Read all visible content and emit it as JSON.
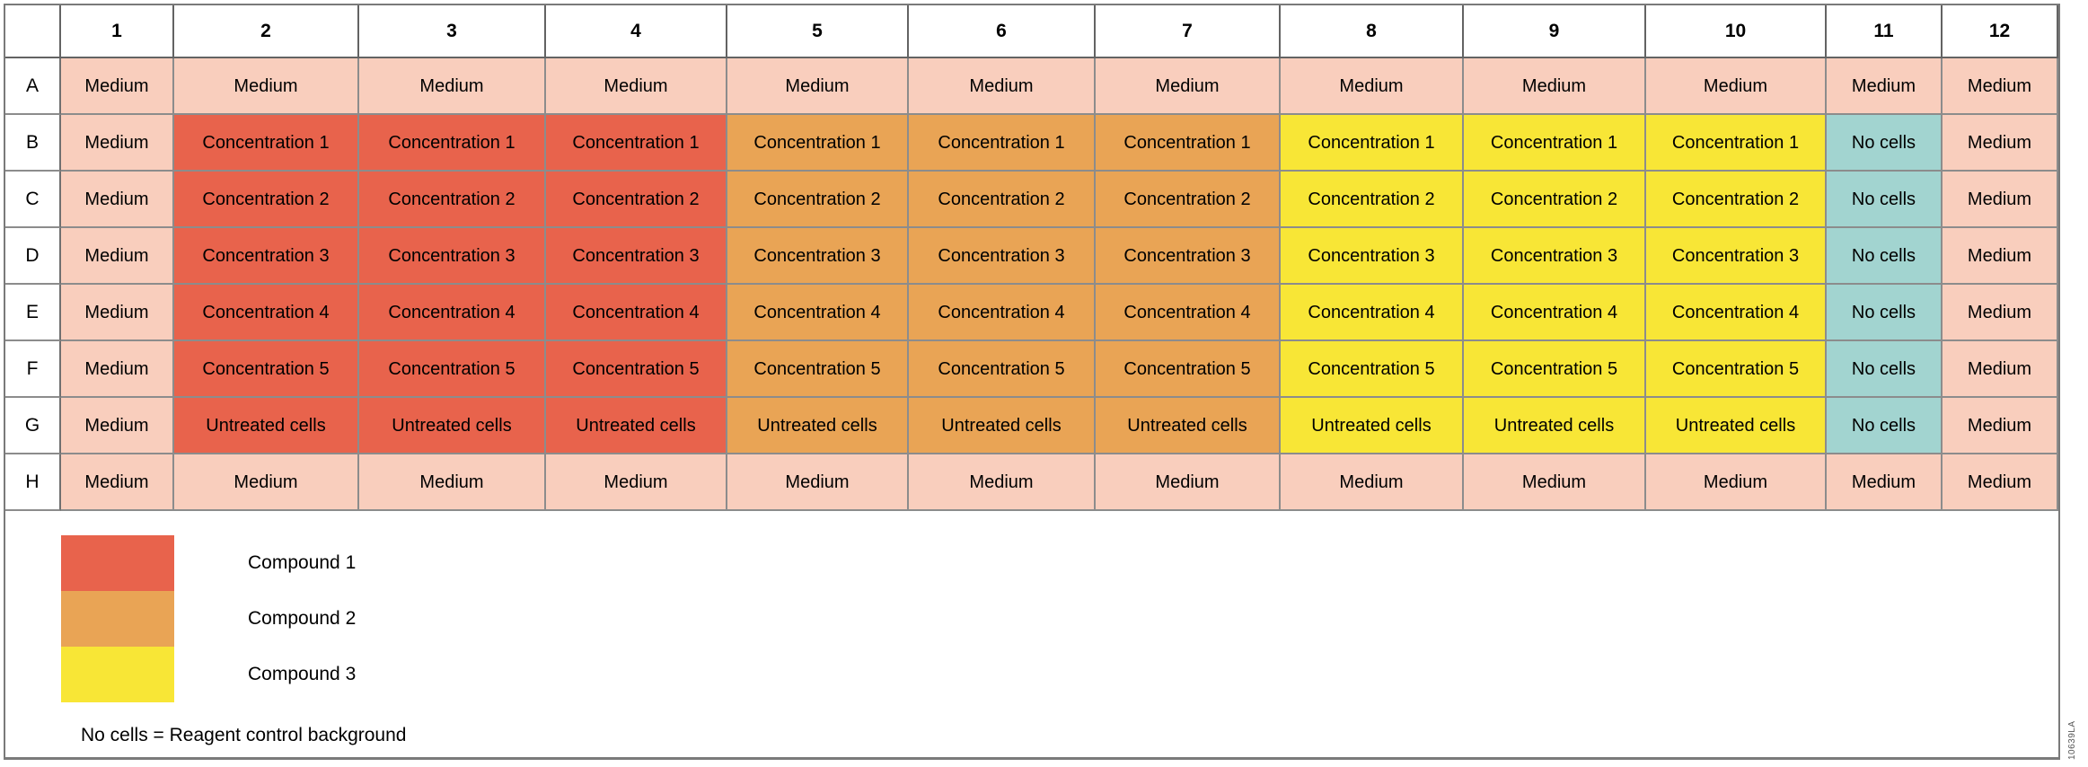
{
  "figure": {
    "note": "No cells = Reagent control background",
    "figure_id": "10639LA"
  },
  "colors": {
    "medium": "#F9CEBD",
    "compound1": "#E8634C",
    "compound2": "#E9A455",
    "compound3": "#F8E636",
    "nocells": "#A2D4D0",
    "grid_line": "#8C8C8C",
    "text": "#000000"
  },
  "plate": {
    "column_headers": [
      "1",
      "2",
      "3",
      "4",
      "5",
      "6",
      "7",
      "8",
      "9",
      "10",
      "11",
      "12"
    ],
    "rows": [
      {
        "label": "A",
        "cells": [
          {
            "text": "Medium",
            "color": "medium"
          },
          {
            "text": "Medium",
            "color": "medium"
          },
          {
            "text": "Medium",
            "color": "medium"
          },
          {
            "text": "Medium",
            "color": "medium"
          },
          {
            "text": "Medium",
            "color": "medium"
          },
          {
            "text": "Medium",
            "color": "medium"
          },
          {
            "text": "Medium",
            "color": "medium"
          },
          {
            "text": "Medium",
            "color": "medium"
          },
          {
            "text": "Medium",
            "color": "medium"
          },
          {
            "text": "Medium",
            "color": "medium"
          },
          {
            "text": "Medium",
            "color": "medium"
          },
          {
            "text": "Medium",
            "color": "medium"
          }
        ]
      },
      {
        "label": "B",
        "cells": [
          {
            "text": "Medium",
            "color": "medium"
          },
          {
            "text": "Concentration 1",
            "color": "compound1"
          },
          {
            "text": "Concentration 1",
            "color": "compound1"
          },
          {
            "text": "Concentration 1",
            "color": "compound1"
          },
          {
            "text": "Concentration 1",
            "color": "compound2"
          },
          {
            "text": "Concentration 1",
            "color": "compound2"
          },
          {
            "text": "Concentration 1",
            "color": "compound2"
          },
          {
            "text": "Concentration 1",
            "color": "compound3"
          },
          {
            "text": "Concentration 1",
            "color": "compound3"
          },
          {
            "text": "Concentration 1",
            "color": "compound3"
          },
          {
            "text": "No cells",
            "color": "nocells"
          },
          {
            "text": "Medium",
            "color": "medium"
          }
        ]
      },
      {
        "label": "C",
        "cells": [
          {
            "text": "Medium",
            "color": "medium"
          },
          {
            "text": "Concentration 2",
            "color": "compound1"
          },
          {
            "text": "Concentration 2",
            "color": "compound1"
          },
          {
            "text": "Concentration 2",
            "color": "compound1"
          },
          {
            "text": "Concentration 2",
            "color": "compound2"
          },
          {
            "text": "Concentration 2",
            "color": "compound2"
          },
          {
            "text": "Concentration 2",
            "color": "compound2"
          },
          {
            "text": "Concentration 2",
            "color": "compound3"
          },
          {
            "text": "Concentration 2",
            "color": "compound3"
          },
          {
            "text": "Concentration 2",
            "color": "compound3"
          },
          {
            "text": "No cells",
            "color": "nocells"
          },
          {
            "text": "Medium",
            "color": "medium"
          }
        ]
      },
      {
        "label": "D",
        "cells": [
          {
            "text": "Medium",
            "color": "medium"
          },
          {
            "text": "Concentration 3",
            "color": "compound1"
          },
          {
            "text": "Concentration 3",
            "color": "compound1"
          },
          {
            "text": "Concentration 3",
            "color": "compound1"
          },
          {
            "text": "Concentration 3",
            "color": "compound2"
          },
          {
            "text": "Concentration 3",
            "color": "compound2"
          },
          {
            "text": "Concentration 3",
            "color": "compound2"
          },
          {
            "text": "Concentration 3",
            "color": "compound3"
          },
          {
            "text": "Concentration 3",
            "color": "compound3"
          },
          {
            "text": "Concentration 3",
            "color": "compound3"
          },
          {
            "text": "No cells",
            "color": "nocells"
          },
          {
            "text": "Medium",
            "color": "medium"
          }
        ]
      },
      {
        "label": "E",
        "cells": [
          {
            "text": "Medium",
            "color": "medium"
          },
          {
            "text": "Concentration 4",
            "color": "compound1"
          },
          {
            "text": "Concentration 4",
            "color": "compound1"
          },
          {
            "text": "Concentration 4",
            "color": "compound1"
          },
          {
            "text": "Concentration 4",
            "color": "compound2"
          },
          {
            "text": "Concentration 4",
            "color": "compound2"
          },
          {
            "text": "Concentration 4",
            "color": "compound2"
          },
          {
            "text": "Concentration 4",
            "color": "compound3"
          },
          {
            "text": "Concentration 4",
            "color": "compound3"
          },
          {
            "text": "Concentration 4",
            "color": "compound3"
          },
          {
            "text": "No cells",
            "color": "nocells"
          },
          {
            "text": "Medium",
            "color": "medium"
          }
        ]
      },
      {
        "label": "F",
        "cells": [
          {
            "text": "Medium",
            "color": "medium"
          },
          {
            "text": "Concentration 5",
            "color": "compound1"
          },
          {
            "text": "Concentration 5",
            "color": "compound1"
          },
          {
            "text": "Concentration 5",
            "color": "compound1"
          },
          {
            "text": "Concentration 5",
            "color": "compound2"
          },
          {
            "text": "Concentration 5",
            "color": "compound2"
          },
          {
            "text": "Concentration 5",
            "color": "compound2"
          },
          {
            "text": "Concentration 5",
            "color": "compound3"
          },
          {
            "text": "Concentration 5",
            "color": "compound3"
          },
          {
            "text": "Concentration 5",
            "color": "compound3"
          },
          {
            "text": "No cells",
            "color": "nocells"
          },
          {
            "text": "Medium",
            "color": "medium"
          }
        ]
      },
      {
        "label": "G",
        "cells": [
          {
            "text": "Medium",
            "color": "medium"
          },
          {
            "text": "Untreated cells",
            "color": "compound1"
          },
          {
            "text": "Untreated cells",
            "color": "compound1"
          },
          {
            "text": "Untreated cells",
            "color": "compound1"
          },
          {
            "text": "Untreated cells",
            "color": "compound2"
          },
          {
            "text": "Untreated cells",
            "color": "compound2"
          },
          {
            "text": "Untreated cells",
            "color": "compound2"
          },
          {
            "text": "Untreated cells",
            "color": "compound3"
          },
          {
            "text": "Untreated cells",
            "color": "compound3"
          },
          {
            "text": "Untreated cells",
            "color": "compound3"
          },
          {
            "text": "No cells",
            "color": "nocells"
          },
          {
            "text": "Medium",
            "color": "medium"
          }
        ]
      },
      {
        "label": "H",
        "cells": [
          {
            "text": "Medium",
            "color": "medium"
          },
          {
            "text": "Medium",
            "color": "medium"
          },
          {
            "text": "Medium",
            "color": "medium"
          },
          {
            "text": "Medium",
            "color": "medium"
          },
          {
            "text": "Medium",
            "color": "medium"
          },
          {
            "text": "Medium",
            "color": "medium"
          },
          {
            "text": "Medium",
            "color": "medium"
          },
          {
            "text": "Medium",
            "color": "medium"
          },
          {
            "text": "Medium",
            "color": "medium"
          },
          {
            "text": "Medium",
            "color": "medium"
          },
          {
            "text": "Medium",
            "color": "medium"
          },
          {
            "text": "Medium",
            "color": "medium"
          }
        ]
      }
    ]
  },
  "legend": {
    "items": [
      {
        "label": "Compound 1",
        "color": "compound1"
      },
      {
        "label": "Compound 2",
        "color": "compound2"
      },
      {
        "label": "Compound 3",
        "color": "compound3"
      }
    ]
  }
}
